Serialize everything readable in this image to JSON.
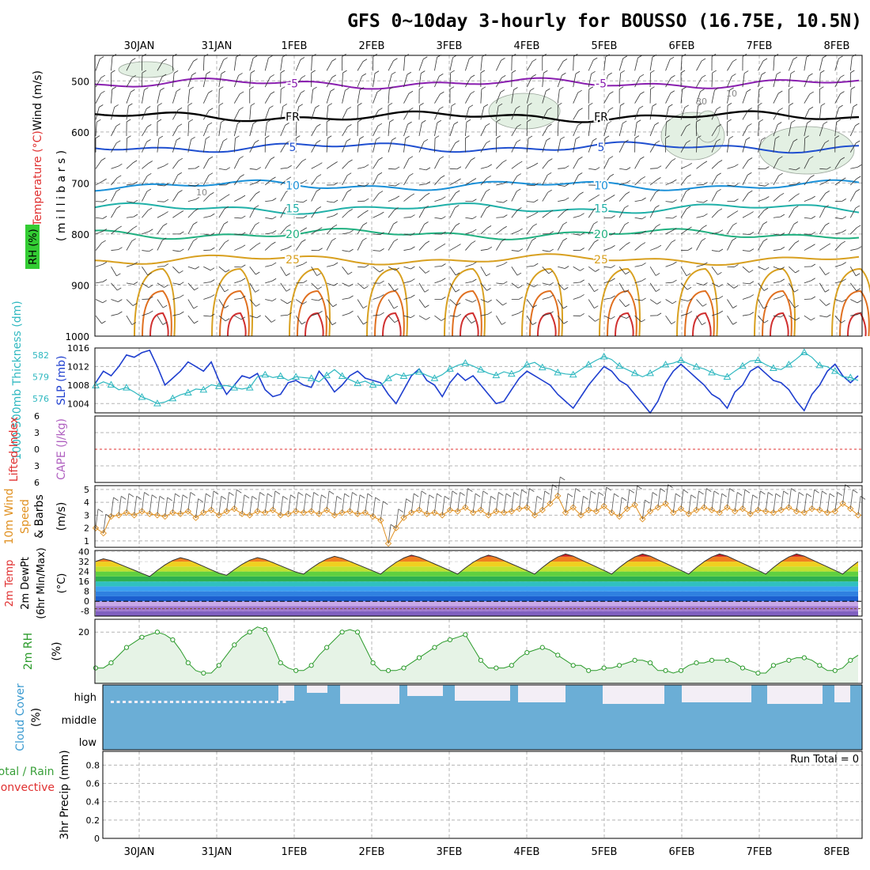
{
  "title": "GFS 0~10day 3-hourly for BOUSSO (16.75E, 10.5N)",
  "dates": [
    "30JAN",
    "31JAN",
    "1FEB",
    "2FEB",
    "3FEB",
    "4FEB",
    "5FEB",
    "6FEB",
    "7FEB",
    "8FEB"
  ],
  "colors": {
    "grid": "#b4b4b4",
    "slp": "#1f3fcf",
    "thickness": "#2fb8c0",
    "wind10m": "#e09020",
    "rh2m": "#2a9a2a",
    "rh_fill": "#e6f3e6",
    "cloud": "#6baed6",
    "cloud_gap": "#f3eef6",
    "li_zero": "#e03030"
  },
  "chart_data": [
    {
      "type": "contour",
      "name": "upper-air",
      "ylabels": [
        "Wind (m/s)",
        "Temperature (°C)",
        "RH (%)",
        "( m i l l i b a r s )"
      ],
      "y_ticks": [
        500,
        600,
        700,
        800,
        900,
        1000
      ],
      "ylim": [
        450,
        1000
      ],
      "temperature_isotherms": [
        {
          "label": "-5",
          "color": "#8a1fb0",
          "approx_mb": 505
        },
        {
          "label": "FR",
          "color": "#000000",
          "approx_mb": 570
        },
        {
          "label": "5",
          "color": "#1f4fd0",
          "approx_mb": 630
        },
        {
          "label": "10",
          "color": "#1a90d8",
          "approx_mb": 705
        },
        {
          "label": "15",
          "color": "#20b0a8",
          "approx_mb": 750
        },
        {
          "label": "20",
          "color": "#20b080",
          "approx_mb": 800
        },
        {
          "label": "25",
          "color": "#d8a020",
          "approx_mb": 850
        }
      ],
      "rh_labels": [
        "10",
        "30"
      ]
    },
    {
      "type": "line",
      "name": "slp-thickness",
      "ylabels": [
        "1000-500mb Thickness (dm)",
        "SLP (mb)"
      ],
      "left_ticks": [
        576,
        579,
        582
      ],
      "right_ticks": [
        1004,
        1008,
        1012,
        1016
      ],
      "ylim_slp": [
        1002,
        1016
      ],
      "series": [
        {
          "name": "SLP",
          "values": [
            1008.5,
            1011,
            1010,
            1012,
            1014.5,
            1014,
            1015,
            1015.5,
            1012,
            1008,
            1009.5,
            1011,
            1013,
            1012,
            1011,
            1013,
            1009,
            1006,
            1008,
            1010,
            1009.5,
            1010.5,
            1007,
            1005.5,
            1006,
            1008.5,
            1009,
            1008,
            1007.5,
            1011,
            1009,
            1006.5,
            1008,
            1010,
            1011,
            1009.5,
            1009,
            1008.5,
            1006,
            1004,
            1007,
            1010,
            1011.5,
            1009,
            1008,
            1005.5,
            1008.5,
            1010.5,
            1009,
            1010,
            1008,
            1006,
            1004,
            1004.5,
            1007,
            1009.5,
            1011,
            1010,
            1009,
            1008,
            1006,
            1004.5,
            1003,
            1005.5,
            1008,
            1010,
            1012,
            1011,
            1009,
            1008,
            1006,
            1004,
            1002,
            1004.5,
            1008.5,
            1011,
            1012.5,
            1011,
            1009.5,
            1008,
            1006,
            1005,
            1003,
            1006.5,
            1008,
            1011,
            1012,
            1010.5,
            1009,
            1008.5,
            1007,
            1004.5,
            1002.5,
            1006,
            1008,
            1011,
            1012.5,
            1010,
            1008.5,
            1010
          ]
        },
        {
          "name": "Thickness",
          "values": [
            577.8,
            578.3,
            577.9,
            577.2,
            577.5,
            576.9,
            576.2,
            575.8,
            575.3,
            575.5,
            576.0,
            576.5,
            576.8,
            577.3,
            577.2,
            577.9,
            577.7,
            577.8,
            577.5,
            577.3,
            577.5,
            579.0,
            579.3,
            578.9,
            579.1,
            578.5,
            579.0,
            578.9,
            578.8,
            578.3,
            579.2,
            580.0,
            579.1,
            578.6,
            578.1,
            578.4,
            577.9,
            577.8,
            578.8,
            579.4,
            579.1,
            579.3,
            579.7,
            579.2,
            578.8,
            579.3,
            580.1,
            580.6,
            580.9,
            580.5,
            580.0,
            579.5,
            579.2,
            579.7,
            579.4,
            579.8,
            580.7,
            581.0,
            580.3,
            580.1,
            579.6,
            579.4,
            579.3,
            580.0,
            580.7,
            581.3,
            581.8,
            581.4,
            580.5,
            580.0,
            579.5,
            579.0,
            579.5,
            580.1,
            580.7,
            580.9,
            581.3,
            580.8,
            580.4,
            580.1,
            579.6,
            579.2,
            579.0,
            579.8,
            580.5,
            581.2,
            581.3,
            580.7,
            580.2,
            580.0,
            580.7,
            581.5,
            582.4,
            581.7,
            580.6,
            580.4,
            579.8,
            579.0,
            578.9,
            578.5
          ]
        }
      ]
    },
    {
      "type": "line",
      "name": "cape-li",
      "ylabels": [
        "Lifted Index",
        "CAPE (J/kg)"
      ],
      "y_ticks": [
        -6,
        -3,
        0,
        3,
        6
      ],
      "tick_labels": [
        "6",
        "3",
        "0",
        "3",
        "6"
      ],
      "ylim": [
        -6,
        6
      ]
    },
    {
      "type": "line",
      "name": "wind10m",
      "ylabels": [
        "10m Wind",
        "Speed",
        "& Barbs",
        "(m/s)"
      ],
      "y_ticks": [
        1,
        2,
        3,
        4,
        5
      ],
      "ylim": [
        0.5,
        5.3
      ],
      "series": [
        {
          "name": "Speed",
          "values": [
            2.0,
            1.6,
            2.9,
            3.0,
            3.2,
            3.0,
            3.3,
            3.1,
            3.0,
            2.9,
            3.2,
            3.1,
            3.3,
            2.8,
            3.2,
            3.4,
            3.0,
            3.3,
            3.5,
            3.1,
            3.0,
            3.3,
            3.2,
            3.4,
            3.0,
            3.1,
            3.3,
            3.2,
            3.3,
            3.1,
            3.4,
            3.0,
            3.2,
            3.3,
            3.1,
            3.2,
            2.9,
            2.6,
            0.8,
            2.0,
            2.8,
            3.2,
            3.4,
            3.1,
            3.2,
            3.0,
            3.4,
            3.3,
            3.6,
            3.2,
            3.4,
            3.0,
            3.3,
            3.2,
            3.3,
            3.5,
            3.6,
            3.0,
            3.4,
            3.9,
            4.5,
            3.2,
            3.6,
            3.0,
            3.4,
            3.3,
            3.7,
            3.2,
            2.9,
            3.5,
            3.8,
            2.7,
            3.3,
            3.6,
            3.9,
            3.2,
            3.5,
            3.1,
            3.4,
            3.6,
            3.4,
            3.2,
            3.6,
            3.3,
            3.5,
            3.1,
            3.4,
            3.3,
            3.2,
            3.4,
            3.6,
            3.3,
            3.2,
            3.5,
            3.4,
            3.2,
            3.3,
            3.9,
            3.5,
            3.0
          ]
        }
      ]
    },
    {
      "type": "area",
      "name": "temperature-dewpoint",
      "ylabels": [
        "2m Temp",
        "2m DewPt",
        "(6hr Min/Max)",
        "(°C)"
      ],
      "y_ticks": [
        40,
        32,
        24,
        16,
        8,
        0,
        -8
      ],
      "ylim": [
        -12,
        41
      ],
      "daily_max_c": [
        35,
        36,
        36,
        37,
        38,
        38,
        39,
        39,
        39,
        39
      ],
      "daily_min_c": [
        20,
        20,
        21,
        22,
        22,
        22,
        22,
        22,
        22,
        22
      ],
      "dewpoint_c": -6
    },
    {
      "type": "area",
      "name": "rh2m",
      "ylabels": [
        "2m RH",
        "(%)"
      ],
      "y_ticks": [
        20
      ],
      "ylim": [
        0,
        25
      ],
      "series": [
        {
          "name": "RH",
          "values": [
            6,
            6,
            8,
            11,
            14,
            16,
            18,
            19,
            20,
            19,
            17,
            13,
            8,
            5,
            4,
            4,
            7,
            11,
            15,
            18,
            20,
            22,
            21,
            15,
            8,
            6,
            5,
            5,
            7,
            11,
            14,
            17,
            20,
            21,
            20,
            14,
            8,
            5,
            5,
            5,
            6,
            8,
            10,
            12,
            14,
            16,
            17,
            18,
            19,
            14,
            9,
            6,
            6,
            6,
            7,
            10,
            12,
            13,
            14,
            13,
            11,
            9,
            7,
            7,
            5,
            5,
            6,
            6,
            7,
            8,
            9,
            9,
            8,
            5,
            5,
            4,
            5,
            7,
            8,
            8,
            9,
            9,
            9,
            8,
            6,
            5,
            4,
            4,
            7,
            8,
            9,
            10,
            10,
            9,
            7,
            5,
            5,
            6,
            9,
            11
          ]
        }
      ]
    },
    {
      "type": "area",
      "name": "cloud-cover",
      "ylabels": [
        "Cloud Cover",
        "(%)"
      ],
      "levels": [
        "high",
        "middle",
        "low"
      ]
    },
    {
      "type": "bar",
      "name": "precip",
      "ylabels": [
        "Total / Rain",
        "Convective",
        "3hr Precip (mm)"
      ],
      "y_ticks": [
        0,
        0.2,
        0.4,
        0.6,
        0.8
      ],
      "ylim": [
        0,
        0.95
      ],
      "run_total_label": "Run Total = 0"
    }
  ]
}
